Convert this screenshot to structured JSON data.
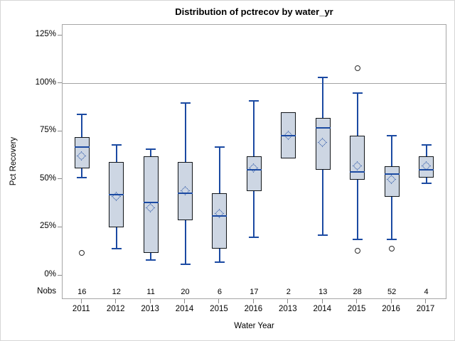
{
  "figure": {
    "title": "Distribution of pctrecov by water_yr"
  },
  "chart_data": {
    "type": "box",
    "title": "Distribution of pctrecov by water_yr",
    "xlabel": "Water Year",
    "ylabel": "Pct Recovery",
    "nobs_row_label": "Nobs",
    "grid": "off",
    "legend": "none",
    "y_tick_labels": [
      "0%",
      "25%",
      "50%",
      "75%",
      "100%",
      "125%"
    ],
    "y_ticks_pct": [
      0,
      25,
      50,
      75,
      100,
      125
    ],
    "ylim_pct": [
      -12,
      130.5
    ],
    "reference_line_pct": 100,
    "categories": [
      "2011",
      "2012",
      "2013",
      "2014",
      "2015",
      "2016",
      "2013",
      "2014",
      "2015",
      "2016",
      "2017"
    ],
    "nobs": [
      16,
      12,
      11,
      20,
      6,
      17,
      2,
      13,
      28,
      52,
      4
    ],
    "series": [
      {
        "category": "2011",
        "nobs": 16,
        "whisker_low": 51,
        "q1": 56,
        "median": 67,
        "mean": 62,
        "q3": 72,
        "whisker_high": 84,
        "outliers": [
          12
        ]
      },
      {
        "category": "2012",
        "nobs": 12,
        "whisker_low": 14,
        "q1": 25,
        "median": 42,
        "mean": 41,
        "q3": 59,
        "whisker_high": 68,
        "outliers": []
      },
      {
        "category": "2013",
        "nobs": 11,
        "whisker_low": 8,
        "q1": 12,
        "median": 38,
        "mean": 35,
        "q3": 62,
        "whisker_high": 66,
        "outliers": []
      },
      {
        "category": "2014",
        "nobs": 20,
        "whisker_low": 6,
        "q1": 29,
        "median": 43,
        "mean": 44,
        "q3": 59,
        "whisker_high": 90,
        "outliers": []
      },
      {
        "category": "2015",
        "nobs": 6,
        "whisker_low": 7,
        "q1": 14,
        "median": 31,
        "mean": 32,
        "q3": 43,
        "whisker_high": 67,
        "outliers": []
      },
      {
        "category": "2016",
        "nobs": 17,
        "whisker_low": 20,
        "q1": 44,
        "median": 55,
        "mean": 56,
        "q3": 62,
        "whisker_high": 91,
        "outliers": []
      },
      {
        "category": "2013",
        "nobs": 2,
        "whisker_low": 61,
        "q1": 61,
        "median": 73,
        "mean": 73,
        "q3": 85,
        "whisker_high": 85,
        "outliers": []
      },
      {
        "category": "2014",
        "nobs": 13,
        "whisker_low": 21,
        "q1": 55,
        "median": 77,
        "mean": 69,
        "q3": 82,
        "whisker_high": 103,
        "outliers": []
      },
      {
        "category": "2015",
        "nobs": 28,
        "whisker_low": 19,
        "q1": 50,
        "median": 54,
        "mean": 57,
        "q3": 73,
        "whisker_high": 95,
        "outliers": [
          13,
          108
        ]
      },
      {
        "category": "2016",
        "nobs": 52,
        "whisker_low": 19,
        "q1": 41,
        "median": 53,
        "mean": 50,
        "q3": 57,
        "whisker_high": 73,
        "outliers": [
          14
        ]
      },
      {
        "category": "2017",
        "nobs": 4,
        "whisker_low": 48,
        "q1": 51,
        "median": 55,
        "mean": 57,
        "q3": 62,
        "whisker_high": 68,
        "outliers": []
      }
    ],
    "colors": {
      "box_fill": "#cdd6e3",
      "box_border": "#101418",
      "line_blue": "#1b4aa2",
      "reference_line": "#a3a3a3",
      "frame": "#a6a6a6",
      "outlier": "#2b2b2b",
      "text": "#000000"
    }
  }
}
